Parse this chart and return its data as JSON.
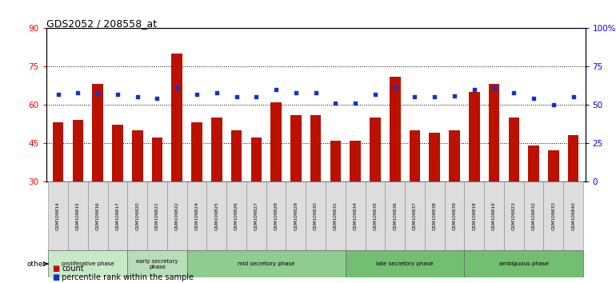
{
  "title": "GDS2052 / 208558_at",
  "samples": [
    "GSM109814",
    "GSM109815",
    "GSM109816",
    "GSM109817",
    "GSM109820",
    "GSM109821",
    "GSM109822",
    "GSM109824",
    "GSM109825",
    "GSM109826",
    "GSM109827",
    "GSM109828",
    "GSM109829",
    "GSM109830",
    "GSM109831",
    "GSM109834",
    "GSM109835",
    "GSM109836",
    "GSM109837",
    "GSM109838",
    "GSM109839",
    "GSM109818",
    "GSM109819",
    "GSM109823",
    "GSM109832",
    "GSM109833",
    "GSM109840"
  ],
  "counts": [
    53,
    54,
    68,
    52,
    50,
    47,
    80,
    53,
    55,
    50,
    47,
    61,
    56,
    56,
    46,
    46,
    55,
    71,
    50,
    49,
    50,
    65,
    68,
    55,
    44,
    42,
    48
  ],
  "percentile_ranks": [
    57,
    58,
    58,
    57,
    55,
    54,
    61,
    57,
    58,
    55,
    55,
    60,
    58,
    58,
    51,
    51,
    57,
    61,
    55,
    55,
    56,
    60,
    61,
    58,
    54,
    50,
    55
  ],
  "phase_defs": [
    {
      "label": "proliferative phase",
      "start": 0,
      "end": 4,
      "color": "#c8e8c8"
    },
    {
      "label": "early secretory\nphase",
      "start": 4,
      "end": 7,
      "color": "#b8ddb8"
    },
    {
      "label": "mid secretory phase",
      "start": 7,
      "end": 15,
      "color": "#8fcc8f"
    },
    {
      "label": "late secretory phase",
      "start": 15,
      "end": 21,
      "color": "#72bf72"
    },
    {
      "label": "ambiguous phase",
      "start": 21,
      "end": 27,
      "color": "#72bf72"
    }
  ],
  "bar_color": "#bb1100",
  "dot_color": "#1133cc",
  "ylim_left": [
    30,
    90
  ],
  "ylim_right": [
    0,
    100
  ],
  "yticks_left": [
    30,
    45,
    60,
    75,
    90
  ],
  "yticks_right": [
    0,
    25,
    50,
    75,
    100
  ]
}
